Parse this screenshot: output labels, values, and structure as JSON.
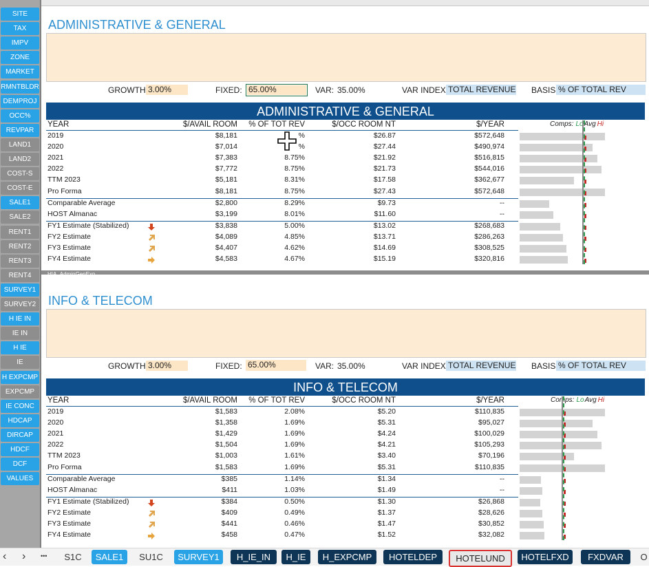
{
  "colors": {
    "nav_blue": "#2aa3e6",
    "nav_gray": "#8e8e8e",
    "banner": "#0f4f8c",
    "section_title": "#2e8fd0",
    "peach": "#fde6c6",
    "light_blue": "#cde2f2",
    "active_tab_border": "#d93030"
  },
  "nav": [
    {
      "label": "SITE",
      "style": "blue"
    },
    {
      "label": "TAX",
      "style": "blue"
    },
    {
      "label": "IMPV",
      "style": "blue"
    },
    {
      "label": "ZONE",
      "style": "blue"
    },
    {
      "label": "MARKET",
      "style": "blue"
    },
    {
      "label": "RMNTBLDR",
      "style": "blue"
    },
    {
      "label": "DEMPROJ",
      "style": "blue"
    },
    {
      "label": "OCC%",
      "style": "blue"
    },
    {
      "label": "REVPAR",
      "style": "blue"
    },
    {
      "label": "LAND1",
      "style": "gray"
    },
    {
      "label": "LAND2",
      "style": "gray"
    },
    {
      "label": "COST-S",
      "style": "gray"
    },
    {
      "label": "COST-E",
      "style": "gray"
    },
    {
      "label": "SALE1",
      "style": "blue"
    },
    {
      "label": "SALE2",
      "style": "gray"
    },
    {
      "label": "RENT1",
      "style": "gray"
    },
    {
      "label": "RENT2",
      "style": "gray"
    },
    {
      "label": "RENT3",
      "style": "gray"
    },
    {
      "label": "RENT4",
      "style": "gray"
    },
    {
      "label": "SURVEY1",
      "style": "blue"
    },
    {
      "label": "SURVEY2",
      "style": "gray"
    },
    {
      "label": "H IE IN",
      "style": "blue"
    },
    {
      "label": "IE IN",
      "style": "gray"
    },
    {
      "label": "H IE",
      "style": "blue"
    },
    {
      "label": "IE",
      "style": "gray"
    },
    {
      "label": "H EXPCMP",
      "style": "blue"
    },
    {
      "label": "EXPCMP",
      "style": "gray"
    },
    {
      "label": "IE CONC",
      "style": "blue"
    },
    {
      "label": "HDCAP",
      "style": "blue"
    },
    {
      "label": "DIRCAP",
      "style": "blue"
    },
    {
      "label": "HDCF",
      "style": "blue"
    },
    {
      "label": "DCF",
      "style": "blue"
    },
    {
      "label": "VALUES",
      "style": "blue"
    }
  ],
  "sections": [
    {
      "title": "ADMINISTRATIVE & GENERAL",
      "growth_label": "GROWTH:",
      "growth": "3.00%",
      "fixed_label": "FIXED:",
      "fixed": "65.00%",
      "var_label": "VAR:",
      "var": "35.00%",
      "var_index_label": "VAR INDEX:",
      "var_index": "TOTAL REVENUE",
      "basis_label": "BASIS:",
      "basis": "% OF TOTAL REV",
      "banner": "ADMINISTRATIVE & GENERAL",
      "headers": [
        "YEAR",
        "$/AVAIL ROOM",
        "% OF TOT REV",
        "$/OCC ROOM NT",
        "$/YEAR"
      ],
      "comps_label": "Comps:",
      "comps_lo": "Lo",
      "comps_avg": "Avg",
      "comps_hi": "Hi",
      "rows": [
        {
          "year": "2019",
          "avail": "$8,181",
          "pct": "%",
          "occ": "$26.87",
          "yr": "$572,648",
          "bar": 0.99,
          "arrow": ""
        },
        {
          "year": "2020",
          "avail": "$7,014",
          "pct": "%",
          "occ": "$27.44",
          "yr": "$490,974",
          "bar": 0.85,
          "arrow": ""
        },
        {
          "year": "2021",
          "avail": "$7,383",
          "pct": "8.75%",
          "occ": "$21.92",
          "yr": "$516,815",
          "bar": 0.9,
          "arrow": ""
        },
        {
          "year": "2022",
          "avail": "$7,772",
          "pct": "8.75%",
          "occ": "$21.73",
          "yr": "$544,016",
          "bar": 0.95,
          "arrow": ""
        },
        {
          "year": "TTM 2023",
          "avail": "$5,181",
          "pct": "8.31%",
          "occ": "$17.58",
          "yr": "$362,677",
          "bar": 0.63,
          "arrow": ""
        },
        {
          "year": "Pro Forma",
          "avail": "$8,181",
          "pct": "8.75%",
          "occ": "$27.43",
          "yr": "$572,648",
          "bar": 0.99,
          "arrow": ""
        },
        {
          "year": "Comparable Average",
          "avail": "$2,800",
          "pct": "8.29%",
          "occ": "$9.73",
          "yr": "--",
          "bar": 0.34,
          "arrow": ""
        },
        {
          "year": "HOST Almanac",
          "avail": "$3,199",
          "pct": "8.01%",
          "occ": "$11.60",
          "yr": "--",
          "bar": 0.39,
          "arrow": ""
        },
        {
          "year": "FY1 Estimate (Stabilized)",
          "avail": "$3,838",
          "pct": "5.00%",
          "occ": "$13.02",
          "yr": "$268,683",
          "bar": 0.47,
          "arrow": "down"
        },
        {
          "year": "FY2 Estimate",
          "avail": "$4,089",
          "pct": "4.85%",
          "occ": "$13.71",
          "yr": "$286,263",
          "bar": 0.5,
          "arrow": "upright"
        },
        {
          "year": "FY3 Estimate",
          "avail": "$4,407",
          "pct": "4.62%",
          "occ": "$14.69",
          "yr": "$308,525",
          "bar": 0.54,
          "arrow": "upright"
        },
        {
          "year": "FY4 Estimate",
          "avail": "$4,583",
          "pct": "4.67%",
          "occ": "$15.19",
          "yr": "$320,816",
          "bar": 0.56,
          "arrow": "right"
        }
      ],
      "range_name": "HIA_AdminGenExp"
    },
    {
      "title": "INFO & TELECOM",
      "growth_label": "GROWTH:",
      "growth": "3.00%",
      "fixed_label": "FIXED:",
      "fixed": "65.00%",
      "var_label": "VAR:",
      "var": "35.00%",
      "var_index_label": "VAR INDEX:",
      "var_index": "TOTAL REVENUE",
      "basis_label": "BASIS:",
      "basis": "% OF TOTAL REV",
      "banner": "INFO & TELECOM",
      "headers": [
        "YEAR",
        "$/AVAIL ROOM",
        "% OF TOT REV",
        "$/OCC ROOM NT",
        "$/YEAR"
      ],
      "comps_label": "Comps:",
      "comps_lo": "Lo",
      "comps_avg": "Avg",
      "comps_hi": "Hi",
      "rows": [
        {
          "year": "2019",
          "avail": "$1,583",
          "pct": "2.08%",
          "occ": "$5.20",
          "yr": "$110,835",
          "bar": 0.99,
          "arrow": ""
        },
        {
          "year": "2020",
          "avail": "$1,358",
          "pct": "1.69%",
          "occ": "$5.31",
          "yr": "$95,027",
          "bar": 0.85,
          "arrow": ""
        },
        {
          "year": "2021",
          "avail": "$1,429",
          "pct": "1.69%",
          "occ": "$4.24",
          "yr": "$100,029",
          "bar": 0.9,
          "arrow": ""
        },
        {
          "year": "2022",
          "avail": "$1,504",
          "pct": "1.69%",
          "occ": "$4.21",
          "yr": "$105,293",
          "bar": 0.95,
          "arrow": ""
        },
        {
          "year": "TTM 2023",
          "avail": "$1,003",
          "pct": "1.61%",
          "occ": "$3.40",
          "yr": "$70,196",
          "bar": 0.63,
          "arrow": ""
        },
        {
          "year": "Pro Forma",
          "avail": "$1,583",
          "pct": "1.69%",
          "occ": "$5.31",
          "yr": "$110,835",
          "bar": 0.99,
          "arrow": ""
        },
        {
          "year": "Comparable Average",
          "avail": "$385",
          "pct": "1.14%",
          "occ": "$1.34",
          "yr": "--",
          "bar": 0.25,
          "arrow": ""
        },
        {
          "year": "HOST Almanac",
          "avail": "$411",
          "pct": "1.03%",
          "occ": "$1.49",
          "yr": "--",
          "bar": 0.26,
          "arrow": ""
        },
        {
          "year": "FY1 Estimate (Stabilized)",
          "avail": "$384",
          "pct": "0.50%",
          "occ": "$1.30",
          "yr": "$26,868",
          "bar": 0.24,
          "arrow": "down"
        },
        {
          "year": "FY2 Estimate",
          "avail": "$409",
          "pct": "0.49%",
          "occ": "$1.37",
          "yr": "$28,626",
          "bar": 0.26,
          "arrow": "upright"
        },
        {
          "year": "FY3 Estimate",
          "avail": "$441",
          "pct": "0.46%",
          "occ": "$1.47",
          "yr": "$30,852",
          "bar": 0.28,
          "arrow": "upright"
        },
        {
          "year": "FY4 Estimate",
          "avail": "$458",
          "pct": "0.47%",
          "occ": "$1.52",
          "yr": "$32,082",
          "bar": 0.29,
          "arrow": "right"
        }
      ]
    }
  ],
  "tabs": [
    {
      "label": "S1C",
      "style": "plain"
    },
    {
      "label": "SALE1",
      "style": "lb"
    },
    {
      "label": "SU1C",
      "style": "plain"
    },
    {
      "label": "SURVEY1",
      "style": "lb"
    },
    {
      "label": "H_IE_IN",
      "style": "db"
    },
    {
      "label": "H_IE",
      "style": "db"
    },
    {
      "label": "H_EXPCMP",
      "style": "db"
    },
    {
      "label": "HOTELDEP",
      "style": "db"
    },
    {
      "label": "HOTELUND",
      "style": "act"
    },
    {
      "label": "HOTELFXD",
      "style": "db"
    },
    {
      "label": "FXDVAR",
      "style": "db"
    },
    {
      "label": "O",
      "style": "plain"
    }
  ],
  "tab_nav": {
    "prev": "‹",
    "next": "›",
    "more": "•••"
  },
  "icons": {
    "cursor": "move-cursor-icon",
    "down": "arrow-down-icon",
    "upright": "arrow-up-right-icon",
    "right": "arrow-right-icon"
  }
}
